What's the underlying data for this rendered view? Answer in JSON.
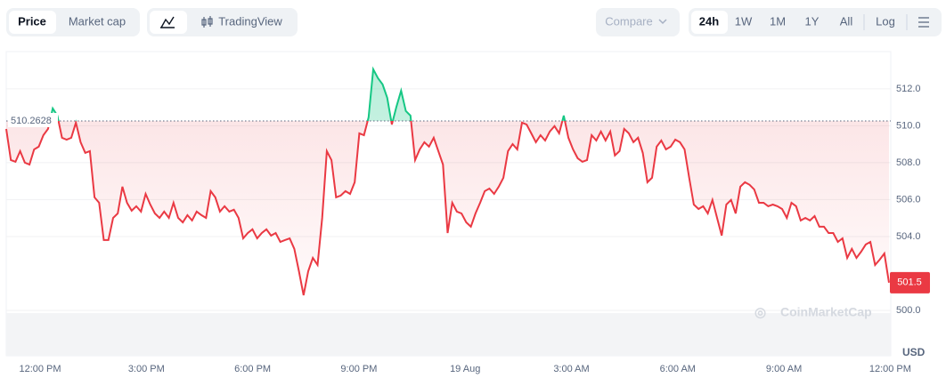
{
  "toolbar": {
    "price": "Price",
    "market_cap": "Market cap",
    "tradingview": "TradingView",
    "compare": "Compare",
    "ranges": [
      "24h",
      "1W",
      "1M",
      "1Y",
      "All"
    ],
    "log": "Log"
  },
  "chart_data": {
    "type": "line",
    "watermark": "CoinMarketCap",
    "unit": "USD",
    "baseline": 510.2628,
    "baseline_label": "510.2628",
    "last_price": 501.5,
    "ylim": [
      497.54,
      514.02
    ],
    "yticks": [
      {
        "value": 500,
        "label": "500.0"
      },
      {
        "value": 504,
        "label": "504.0"
      },
      {
        "value": 506,
        "label": "506.0"
      },
      {
        "value": 508,
        "label": "508.0"
      },
      {
        "value": 510,
        "label": "510.0"
      },
      {
        "value": 512,
        "label": "512.0"
      }
    ],
    "xticks": [
      "12:00 PM",
      "3:00 PM",
      "6:00 PM",
      "9:00 PM",
      "19 Aug",
      "3:00 AM",
      "6:00 AM",
      "9:00 AM",
      "12:00 PM"
    ],
    "up_color": "#16c784",
    "down_color": "#ea3943",
    "series": [
      {
        "values": [
          509.83,
          508.14,
          508.05,
          508.63,
          508.0,
          507.9,
          508.72,
          508.87,
          509.49,
          509.83,
          510.94,
          510.55,
          509.35,
          509.25,
          509.35,
          510.17,
          509.11,
          508.53,
          508.63,
          506.12,
          505.83,
          503.81,
          503.81,
          505.01,
          505.25,
          506.7,
          505.83,
          505.4,
          505.64,
          505.35,
          506.31,
          505.73,
          505.25,
          505.01,
          505.35,
          505.01,
          505.83,
          505.01,
          504.77,
          505.16,
          504.87,
          505.35,
          505.16,
          505.01,
          506.46,
          506.12,
          505.35,
          505.64,
          505.35,
          505.45,
          505.01,
          503.9,
          504.19,
          504.39,
          503.9,
          504.19,
          504.39,
          504.05,
          504.19,
          503.71,
          503.81,
          503.9,
          503.33,
          502.12,
          500.82,
          502.12,
          502.84,
          502.46,
          505.01,
          508.63,
          508.14,
          506.12,
          506.22,
          506.46,
          506.31,
          506.94,
          509.59,
          509.49,
          510.46,
          513.06,
          512.58,
          512.24,
          511.52,
          510.07,
          511.04,
          511.9,
          510.8,
          510.55,
          508.14,
          508.72,
          509.11,
          508.87,
          509.35,
          508.63,
          507.9,
          504.19,
          505.83,
          505.35,
          505.25,
          504.77,
          504.53,
          505.25,
          505.83,
          506.46,
          506.6,
          506.31,
          506.7,
          507.18,
          508.63,
          509.01,
          508.72,
          510.17,
          510.07,
          509.59,
          509.11,
          509.49,
          509.2,
          509.69,
          509.98,
          509.59,
          510.55,
          509.35,
          508.72,
          508.24,
          508.05,
          508.14,
          509.49,
          509.2,
          509.69,
          509.2,
          509.69,
          508.39,
          508.63,
          509.83,
          509.59,
          509.11,
          509.35,
          508.53,
          506.94,
          507.18,
          508.87,
          509.2,
          508.72,
          508.87,
          509.25,
          509.11,
          508.72,
          507.18,
          505.73,
          505.49,
          505.64,
          505.25,
          505.98,
          505.01,
          504.05,
          505.73,
          505.98,
          505.25,
          506.7,
          506.94,
          506.8,
          506.55,
          505.83,
          505.83,
          505.64,
          505.73,
          505.64,
          505.49,
          505.01,
          505.83,
          505.64,
          504.87,
          505.01,
          504.87,
          505.11,
          504.53,
          504.53,
          504.19,
          504.19,
          503.71,
          503.9,
          502.84,
          503.33,
          502.84,
          503.18,
          503.57,
          503.71,
          502.46,
          502.75,
          503.08,
          501.5
        ]
      }
    ]
  }
}
